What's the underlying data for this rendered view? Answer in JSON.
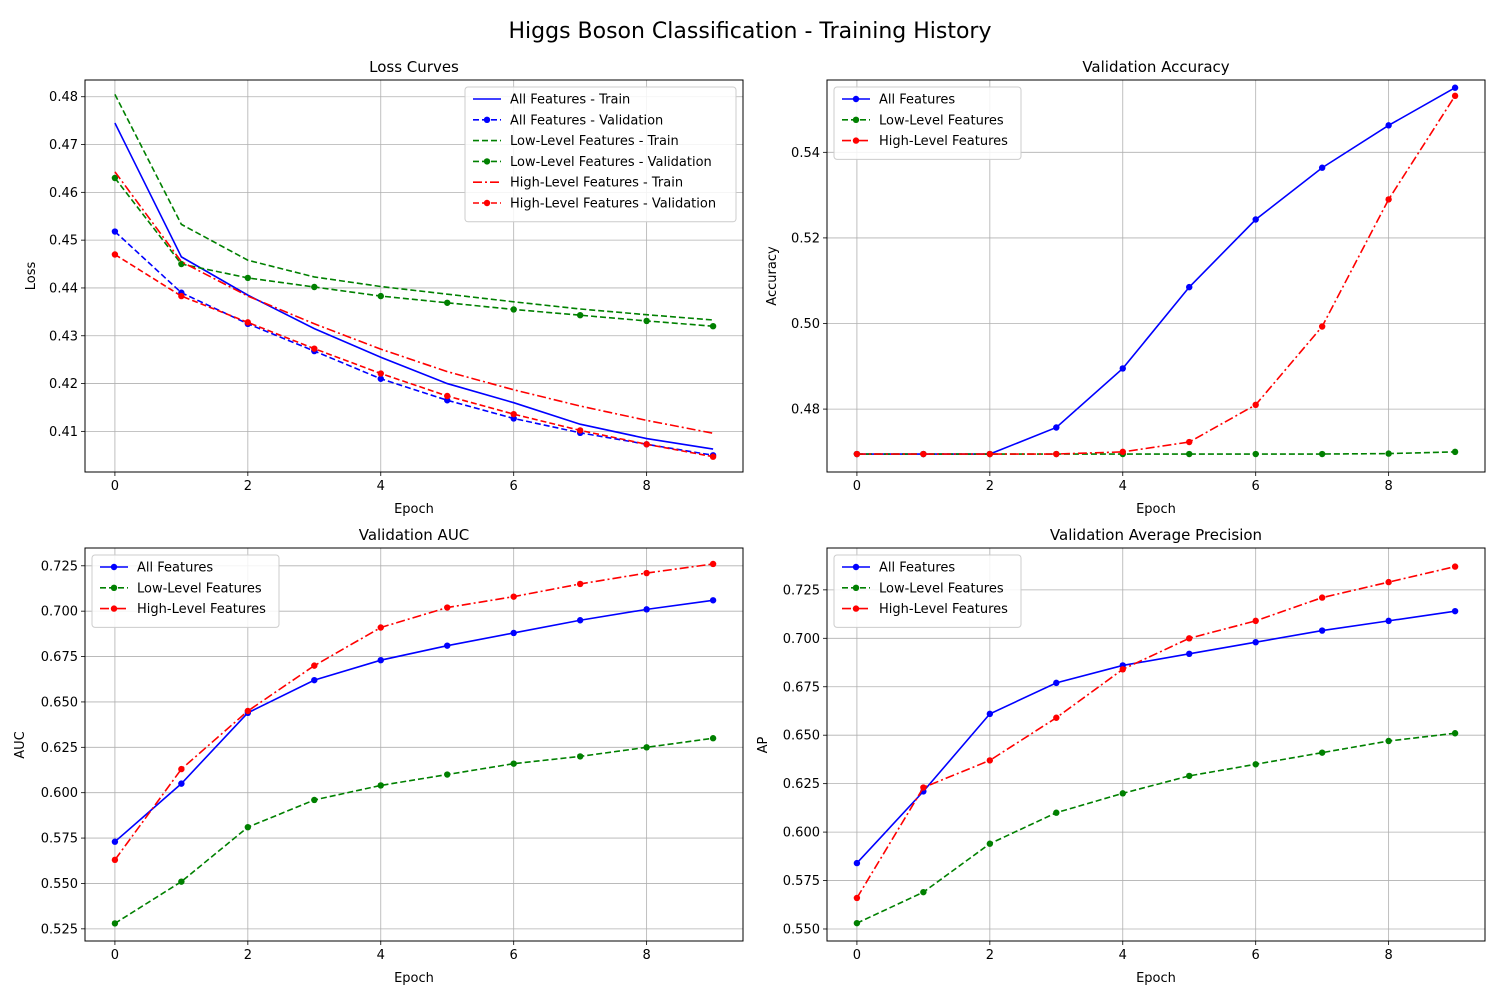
{
  "figure": {
    "suptitle": "Higgs Boson Classification - Training History"
  },
  "colors": {
    "all": "#0000ff",
    "low": "#008000",
    "high": "#ff0000",
    "grid": "#b0b0b0"
  },
  "chart_data": [
    {
      "type": "line",
      "title": "Loss Curves",
      "xlabel": "Epoch",
      "ylabel": "Loss",
      "xlim": [
        -0.45,
        9.45
      ],
      "ylim": [
        0.4015,
        0.4835
      ],
      "xticks": [
        0,
        2,
        4,
        6,
        8
      ],
      "yticks": [
        0.41,
        0.42,
        0.43,
        0.44,
        0.45,
        0.46,
        0.47,
        0.48
      ],
      "grid": true,
      "legend_position": "upper right",
      "x": [
        0,
        1,
        2,
        3,
        4,
        5,
        6,
        7,
        8,
        9
      ],
      "series": [
        {
          "name": "All Features - Train",
          "color": "all",
          "style": "solid",
          "marker": false,
          "values": [
            0.4745,
            0.4465,
            0.4385,
            0.4315,
            0.4255,
            0.42,
            0.416,
            0.4115,
            0.4085,
            0.4063
          ]
        },
        {
          "name": "All Features - Validation",
          "color": "all",
          "style": "dashed",
          "marker": true,
          "values": [
            0.4518,
            0.439,
            0.4325,
            0.4268,
            0.421,
            0.4165,
            0.4127,
            0.4097,
            0.4073,
            0.405
          ]
        },
        {
          "name": "Low-Level Features - Train",
          "color": "low",
          "style": "dashed",
          "marker": false,
          "values": [
            0.4805,
            0.4533,
            0.4458,
            0.4423,
            0.4403,
            0.4387,
            0.4371,
            0.4356,
            0.4344,
            0.4333
          ]
        },
        {
          "name": "Low-Level Features - Validation",
          "color": "low",
          "style": "dashed",
          "marker": true,
          "values": [
            0.463,
            0.445,
            0.4421,
            0.4402,
            0.4383,
            0.4369,
            0.4355,
            0.4343,
            0.4331,
            0.432
          ]
        },
        {
          "name": "High-Level Features - Train",
          "color": "high",
          "style": "dashdot",
          "marker": false,
          "values": [
            0.4643,
            0.4455,
            0.4383,
            0.4325,
            0.4272,
            0.4225,
            0.4187,
            0.4153,
            0.4123,
            0.4096
          ]
        },
        {
          "name": "High-Level Features - Validation",
          "color": "high",
          "style": "dashed",
          "marker": true,
          "values": [
            0.447,
            0.4383,
            0.4328,
            0.4273,
            0.4221,
            0.4174,
            0.4136,
            0.4102,
            0.4073,
            0.4047
          ]
        }
      ]
    },
    {
      "type": "line",
      "title": "Validation Accuracy",
      "xlabel": "Epoch",
      "ylabel": "Accuracy",
      "xlim": [
        -0.45,
        9.45
      ],
      "ylim": [
        0.4653,
        0.5569
      ],
      "xticks": [
        0,
        2,
        4,
        6,
        8
      ],
      "yticks": [
        0.48,
        0.5,
        0.52,
        0.54
      ],
      "grid": true,
      "legend_position": "upper left",
      "x": [
        0,
        1,
        2,
        3,
        4,
        5,
        6,
        7,
        8,
        9
      ],
      "series": [
        {
          "name": "All Features",
          "color": "all",
          "style": "solid",
          "marker": true,
          "values": [
            0.4695,
            0.4695,
            0.4695,
            0.4757,
            0.4895,
            0.5085,
            0.5243,
            0.5364,
            0.5463,
            0.5551
          ]
        },
        {
          "name": "Low-Level Features",
          "color": "low",
          "style": "dashed",
          "marker": true,
          "values": [
            0.4695,
            0.4695,
            0.4695,
            0.4695,
            0.4695,
            0.4695,
            0.4695,
            0.4695,
            0.4696,
            0.47
          ]
        },
        {
          "name": "High-Level Features",
          "color": "high",
          "style": "dashdot",
          "marker": true,
          "values": [
            0.4695,
            0.4695,
            0.4695,
            0.4695,
            0.47,
            0.4723,
            0.481,
            0.4993,
            0.529,
            0.5532
          ]
        }
      ]
    },
    {
      "type": "line",
      "title": "Validation AUC",
      "xlabel": "Epoch",
      "ylabel": "AUC",
      "xlim": [
        -0.45,
        9.45
      ],
      "ylim": [
        0.5183,
        0.7348
      ],
      "xticks": [
        0,
        2,
        4,
        6,
        8
      ],
      "yticks": [
        0.525,
        0.55,
        0.575,
        0.6,
        0.625,
        0.65,
        0.675,
        0.7,
        0.725
      ],
      "grid": true,
      "legend_position": "upper left",
      "x": [
        0,
        1,
        2,
        3,
        4,
        5,
        6,
        7,
        8,
        9
      ],
      "series": [
        {
          "name": "All Features",
          "color": "all",
          "style": "solid",
          "marker": true,
          "values": [
            0.573,
            0.605,
            0.644,
            0.662,
            0.673,
            0.681,
            0.688,
            0.695,
            0.701,
            0.706
          ]
        },
        {
          "name": "Low-Level Features",
          "color": "low",
          "style": "dashed",
          "marker": true,
          "values": [
            0.528,
            0.551,
            0.581,
            0.596,
            0.604,
            0.61,
            0.616,
            0.62,
            0.625,
            0.63
          ]
        },
        {
          "name": "High-Level Features",
          "color": "high",
          "style": "dashdot",
          "marker": true,
          "values": [
            0.563,
            0.613,
            0.645,
            0.67,
            0.691,
            0.702,
            0.708,
            0.715,
            0.721,
            0.726
          ]
        }
      ]
    },
    {
      "type": "line",
      "title": "Validation Average Precision",
      "xlabel": "Epoch",
      "ylabel": "AP",
      "xlim": [
        -0.45,
        9.45
      ],
      "ylim": [
        0.5438,
        0.7466
      ],
      "xticks": [
        0,
        2,
        4,
        6,
        8
      ],
      "yticks": [
        0.55,
        0.575,
        0.6,
        0.625,
        0.65,
        0.675,
        0.7,
        0.725
      ],
      "grid": true,
      "legend_position": "upper left",
      "x": [
        0,
        1,
        2,
        3,
        4,
        5,
        6,
        7,
        8,
        9
      ],
      "series": [
        {
          "name": "All Features",
          "color": "all",
          "style": "solid",
          "marker": true,
          "values": [
            0.584,
            0.621,
            0.661,
            0.677,
            0.686,
            0.692,
            0.698,
            0.704,
            0.709,
            0.714
          ]
        },
        {
          "name": "Low-Level Features",
          "color": "low",
          "style": "dashed",
          "marker": true,
          "values": [
            0.553,
            0.569,
            0.594,
            0.61,
            0.62,
            0.629,
            0.635,
            0.641,
            0.647,
            0.651
          ]
        },
        {
          "name": "High-Level Features",
          "color": "high",
          "style": "dashdot",
          "marker": true,
          "values": [
            0.566,
            0.623,
            0.637,
            0.659,
            0.684,
            0.7,
            0.709,
            0.721,
            0.729,
            0.737
          ]
        }
      ]
    }
  ]
}
